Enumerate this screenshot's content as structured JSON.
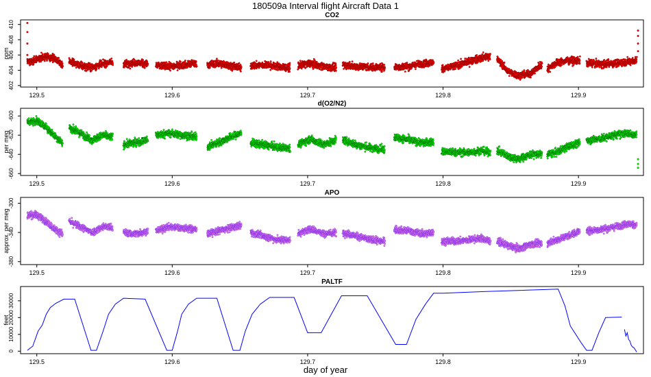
{
  "page_title": "180509a   Interval flight Aircraft Data 1",
  "xlabel": "day of year",
  "chart_data": [
    {
      "type": "scatter",
      "title": "CO2",
      "ylabel": "ppm",
      "xlim": [
        129.488,
        129.948
      ],
      "ylim": [
        401.8,
        410.6
      ],
      "xticks": [
        129.5,
        129.6,
        129.7,
        129.8,
        129.9
      ],
      "yticks": [
        402,
        404,
        406,
        408,
        410
      ],
      "color": "#ff0000",
      "edge_color": "#8b0000",
      "spread": 1.1,
      "segments": [
        {
          "x": [
            129.493,
            129.497,
            129.503,
            129.508,
            129.513,
            129.519
          ],
          "y": [
            405.2,
            405.2,
            405.6,
            405.8,
            405.5,
            404.8
          ]
        },
        {
          "x": [
            129.524,
            129.532,
            129.541,
            129.549,
            129.556
          ],
          "y": [
            405.2,
            404.6,
            404.4,
            404.8,
            405.1
          ]
        },
        {
          "x": [
            129.564,
            129.572,
            129.582
          ],
          "y": [
            404.8,
            405.0,
            404.8
          ]
        },
        {
          "x": [
            129.588,
            129.598,
            129.608,
            129.618
          ],
          "y": [
            404.6,
            404.5,
            404.7,
            404.9
          ]
        },
        {
          "x": [
            129.626,
            129.634,
            129.643,
            129.651
          ],
          "y": [
            404.7,
            404.9,
            404.6,
            404.3
          ]
        },
        {
          "x": [
            129.658,
            129.668,
            129.678,
            129.687
          ],
          "y": [
            404.6,
            404.7,
            404.5,
            404.3
          ]
        },
        {
          "x": [
            129.693,
            129.702,
            129.712,
            129.721
          ],
          "y": [
            404.6,
            404.9,
            404.5,
            404.3
          ]
        },
        {
          "x": [
            129.726,
            129.736,
            129.746,
            129.757
          ],
          "y": [
            404.7,
            404.5,
            404.4,
            404.4
          ]
        },
        {
          "x": [
            129.764,
            129.775,
            129.785,
            129.793
          ],
          "y": [
            404.4,
            404.5,
            404.9,
            405.0
          ]
        },
        {
          "x": [
            129.799,
            129.81,
            129.82,
            129.828,
            129.835
          ],
          "y": [
            404.2,
            404.6,
            405.2,
            405.6,
            405.9
          ]
        },
        {
          "x": [
            129.84,
            129.848,
            129.856,
            129.865,
            129.873
          ],
          "y": [
            405.5,
            403.8,
            403.3,
            403.6,
            404.8
          ]
        },
        {
          "x": [
            129.877,
            129.884,
            129.892,
            129.901
          ],
          "y": [
            404.2,
            405.0,
            405.3,
            405.2
          ]
        },
        {
          "x": [
            129.906,
            129.916,
            129.926,
            129.936,
            129.943
          ],
          "y": [
            405.0,
            404.8,
            404.9,
            405.1,
            405.3
          ]
        }
      ],
      "spikes": [
        {
          "x": 129.493,
          "y": [
            406,
            407.5,
            409,
            410.2
          ]
        },
        {
          "x": 129.944,
          "y": [
            406.5,
            407.5,
            408.5,
            409.2
          ]
        }
      ]
    },
    {
      "type": "scatter",
      "title": "d(O2/N2)",
      "ylabel": "per meg",
      "xlim": [
        129.488,
        129.948
      ],
      "ylim": [
        -662,
        -592
      ],
      "xticks": [
        129.5,
        129.6,
        129.7,
        129.8,
        129.9
      ],
      "yticks": [
        -660,
        -640,
        -620,
        -600
      ],
      "color": "#00ff00",
      "edge_color": "#006400",
      "spread": 9,
      "segments": [
        {
          "x": [
            129.493,
            129.5,
            129.507,
            129.513,
            129.519
          ],
          "y": [
            -606,
            -605,
            -612,
            -620,
            -628
          ]
        },
        {
          "x": [
            129.524,
            129.532,
            129.541,
            129.549,
            129.556
          ],
          "y": [
            -612,
            -618,
            -625,
            -620,
            -622
          ]
        },
        {
          "x": [
            129.564,
            129.572,
            129.582
          ],
          "y": [
            -630,
            -628,
            -625
          ]
        },
        {
          "x": [
            129.588,
            129.598,
            129.608,
            129.618
          ],
          "y": [
            -620,
            -618,
            -620,
            -622
          ]
        },
        {
          "x": [
            129.626,
            129.634,
            129.643,
            129.651
          ],
          "y": [
            -632,
            -628,
            -622,
            -618
          ]
        },
        {
          "x": [
            129.658,
            129.668,
            129.678,
            129.687
          ],
          "y": [
            -628,
            -630,
            -633,
            -633
          ]
        },
        {
          "x": [
            129.693,
            129.702,
            129.712,
            129.721
          ],
          "y": [
            -630,
            -624,
            -630,
            -625
          ]
        },
        {
          "x": [
            129.726,
            129.736,
            129.746,
            129.757
          ],
          "y": [
            -625,
            -630,
            -633,
            -635
          ]
        },
        {
          "x": [
            129.764,
            129.775,
            129.785,
            129.793
          ],
          "y": [
            -622,
            -625,
            -628,
            -627
          ]
        },
        {
          "x": [
            129.799,
            129.81,
            129.82,
            129.828,
            129.835
          ],
          "y": [
            -637,
            -638,
            -638,
            -636,
            -638
          ]
        },
        {
          "x": [
            129.84,
            129.848,
            129.856,
            129.865,
            129.873
          ],
          "y": [
            -636,
            -642,
            -645,
            -640,
            -640
          ]
        },
        {
          "x": [
            129.877,
            129.884,
            129.892,
            129.901
          ],
          "y": [
            -640,
            -638,
            -632,
            -628
          ]
        },
        {
          "x": [
            129.906,
            129.916,
            129.926,
            129.936,
            129.943
          ],
          "y": [
            -625,
            -624,
            -620,
            -618,
            -620
          ]
        }
      ],
      "spikes": [
        {
          "x": 129.944,
          "y": [
            -645,
            -650,
            -654
          ]
        }
      ]
    },
    {
      "type": "scatter",
      "title": "APO",
      "ylabel": "approx. per meg",
      "xlim": [
        129.488,
        129.948
      ],
      "ylim": [
        -384,
        -292
      ],
      "xticks": [
        129.5,
        129.6,
        129.7,
        129.8,
        129.9
      ],
      "yticks": [
        -380,
        -340,
        -300
      ],
      "color": "#ee82ee",
      "edge_color": "#7b2be2",
      "spread": 11,
      "segments": [
        {
          "x": [
            129.493,
            129.5,
            129.507,
            129.513,
            129.519
          ],
          "y": [
            -316,
            -316,
            -325,
            -335,
            -342
          ]
        },
        {
          "x": [
            129.524,
            129.532,
            129.541,
            129.549,
            129.556
          ],
          "y": [
            -325,
            -332,
            -340,
            -332,
            -333
          ]
        },
        {
          "x": [
            129.564,
            129.572,
            129.582
          ],
          "y": [
            -340,
            -342,
            -338
          ]
        },
        {
          "x": [
            129.588,
            129.598,
            129.608,
            129.618
          ],
          "y": [
            -338,
            -332,
            -334,
            -336
          ]
        },
        {
          "x": [
            129.626,
            129.634,
            129.643,
            129.651
          ],
          "y": [
            -342,
            -338,
            -334,
            -330
          ]
        },
        {
          "x": [
            129.658,
            129.668,
            129.678,
            129.687
          ],
          "y": [
            -340,
            -345,
            -350,
            -350
          ]
        },
        {
          "x": [
            129.693,
            129.702,
            129.712,
            129.721
          ],
          "y": [
            -342,
            -335,
            -342,
            -340
          ]
        },
        {
          "x": [
            129.726,
            129.736,
            129.746,
            129.757
          ],
          "y": [
            -340,
            -345,
            -350,
            -352
          ]
        },
        {
          "x": [
            129.764,
            129.775,
            129.785,
            129.793
          ],
          "y": [
            -336,
            -338,
            -342,
            -340
          ]
        },
        {
          "x": [
            129.799,
            129.81,
            129.82,
            129.828,
            129.835
          ],
          "y": [
            -352,
            -352,
            -350,
            -348,
            -352
          ]
        },
        {
          "x": [
            129.84,
            129.848,
            129.856,
            129.865,
            129.873
          ],
          "y": [
            -352,
            -358,
            -362,
            -356,
            -355
          ]
        },
        {
          "x": [
            129.877,
            129.884,
            129.892,
            129.901
          ],
          "y": [
            -355,
            -350,
            -345,
            -338
          ]
        },
        {
          "x": [
            129.906,
            129.916,
            129.926,
            129.936,
            129.943
          ],
          "y": [
            -338,
            -336,
            -333,
            -328,
            -330
          ]
        }
      ],
      "spikes": []
    },
    {
      "type": "line",
      "title": "PALTF",
      "ylabel": "feet",
      "xlim": [
        129.488,
        129.948
      ],
      "ylim": [
        -1500,
        38500
      ],
      "xticks": [
        129.5,
        129.6,
        129.7,
        129.8,
        129.9
      ],
      "yticks": [
        0,
        10000,
        20000,
        30000
      ],
      "color": "#0000ff",
      "segments": [
        {
          "x": [
            129.493,
            129.497,
            129.501,
            129.504,
            129.507,
            129.51,
            129.514,
            129.52,
            129.528,
            129.54,
            129.544,
            129.549,
            129.553,
            129.558,
            129.564,
            129.58,
            129.596,
            129.6,
            129.604,
            129.607,
            129.612,
            129.618,
            129.633,
            129.645,
            129.65,
            129.654,
            129.659,
            129.665,
            129.672,
            129.69,
            129.7,
            129.71,
            129.725,
            129.737,
            129.744,
            129.765,
            129.773,
            129.78,
            129.787,
            129.793,
            129.8,
            129.83,
            129.885,
            129.89,
            129.894,
            129.898,
            129.902,
            129.906,
            129.91,
            129.915,
            129.92,
            129.932
          ],
          "y": [
            500,
            3000,
            12000,
            15500,
            22000,
            26000,
            28500,
            31000,
            31000,
            500,
            500,
            12000,
            22000,
            28000,
            31500,
            31000,
            500,
            500,
            12000,
            22000,
            28000,
            31500,
            31500,
            500,
            500,
            12000,
            22000,
            28000,
            32000,
            32000,
            11000,
            11000,
            33000,
            33000,
            33000,
            4000,
            4000,
            19000,
            28000,
            34500,
            34500,
            35500,
            37000,
            27000,
            15000,
            10000,
            5000,
            500,
            500,
            11000,
            20000,
            20300
          ]
        },
        {
          "x": [
            129.934,
            129.935,
            129.936,
            129.937,
            129.938,
            129.939,
            129.94,
            129.941,
            129.943
          ],
          "y": [
            13000,
            9000,
            11000,
            7000,
            6000,
            3500,
            2500,
            2000,
            -500
          ]
        }
      ]
    }
  ]
}
